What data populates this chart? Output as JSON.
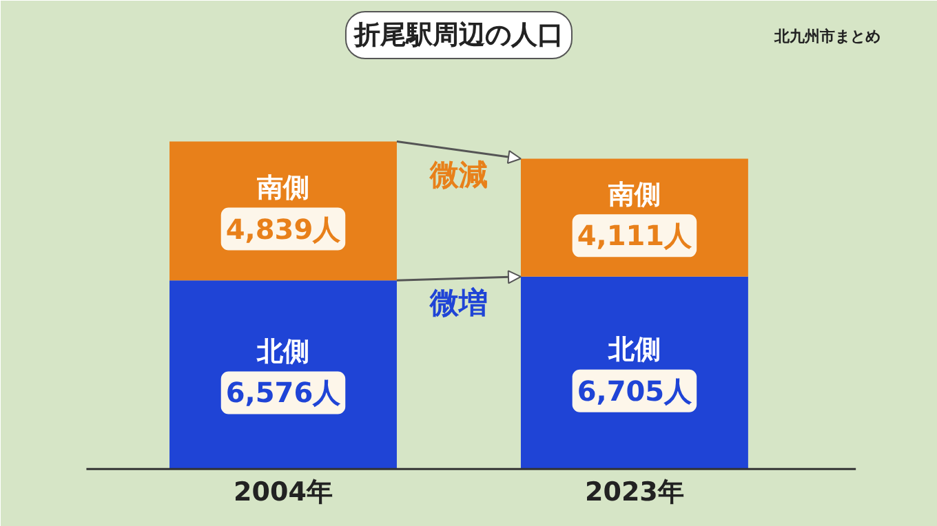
{
  "chart_data": {
    "type": "bar",
    "title": "折尾駅周辺の人口",
    "stacked": true,
    "categories": [
      "2004年",
      "2023年"
    ],
    "series": [
      {
        "name": "北側",
        "color": "#1f44d6",
        "values": [
          6576,
          6705
        ],
        "value_labels": [
          "6,576人",
          "6,705人"
        ]
      },
      {
        "name": "南側",
        "color": "#e8801a",
        "values": [
          4839,
          4111
        ],
        "value_labels": [
          "4,839人",
          "4,111人"
        ]
      }
    ],
    "annotations": [
      "微減",
      "微増",
      "北九州市まとめ"
    ]
  }
}
